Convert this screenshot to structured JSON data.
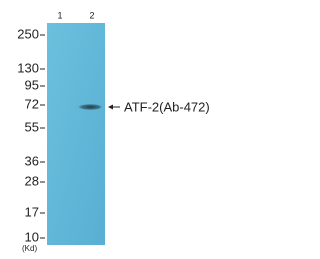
{
  "lanes": [
    "1",
    "2"
  ],
  "markers": [
    "250",
    "130",
    "95",
    "72",
    "55",
    "36",
    "28",
    "17",
    "10"
  ],
  "unit": "(Kd)",
  "band_label": "ATF-2(Ab-472)"
}
